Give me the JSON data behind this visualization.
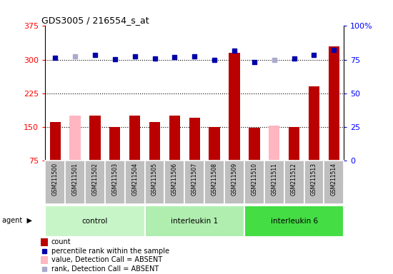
{
  "title": "GDS3005 / 216554_s_at",
  "samples": [
    "GSM211500",
    "GSM211501",
    "GSM211502",
    "GSM211503",
    "GSM211504",
    "GSM211505",
    "GSM211506",
    "GSM211507",
    "GSM211508",
    "GSM211509",
    "GSM211510",
    "GSM211511",
    "GSM211512",
    "GSM211513",
    "GSM211514"
  ],
  "counts": [
    160,
    175,
    175,
    150,
    175,
    160,
    175,
    170,
    150,
    315,
    147,
    152,
    150,
    240,
    330
  ],
  "absent_count": [
    false,
    true,
    false,
    false,
    false,
    false,
    false,
    false,
    false,
    false,
    false,
    true,
    false,
    false,
    false
  ],
  "percentile": [
    304,
    307,
    310,
    301,
    308,
    302,
    306,
    308,
    300,
    320,
    295,
    300,
    303,
    311,
    322
  ],
  "absent_rank": [
    false,
    true,
    false,
    false,
    false,
    false,
    false,
    false,
    false,
    false,
    false,
    true,
    false,
    false,
    false
  ],
  "groups": [
    {
      "label": "control",
      "start": 0,
      "end": 5
    },
    {
      "label": "interleukin 1",
      "start": 5,
      "end": 10
    },
    {
      "label": "interleukin 6",
      "start": 10,
      "end": 15
    }
  ],
  "group_colors": [
    "#C8F5C8",
    "#B0EEB0",
    "#44DD44"
  ],
  "ylim_left": [
    75,
    375
  ],
  "yticks_left": [
    75,
    150,
    225,
    300,
    375
  ],
  "yticks_right_pct": [
    0,
    25,
    50,
    75,
    100
  ],
  "bar_color_normal": "#BB0000",
  "bar_color_absent": "#FFB6C1",
  "dot_color_normal": "#0000AA",
  "dot_color_absent": "#AAAACC",
  "sample_bg": "#BEBEBE",
  "legend_items": [
    {
      "marker": "bar",
      "color": "#BB0000",
      "label": "count"
    },
    {
      "marker": "square",
      "color": "#0000AA",
      "label": "percentile rank within the sample"
    },
    {
      "marker": "bar",
      "color": "#FFB6C1",
      "label": "value, Detection Call = ABSENT"
    },
    {
      "marker": "square",
      "color": "#AAAACC",
      "label": "rank, Detection Call = ABSENT"
    }
  ]
}
